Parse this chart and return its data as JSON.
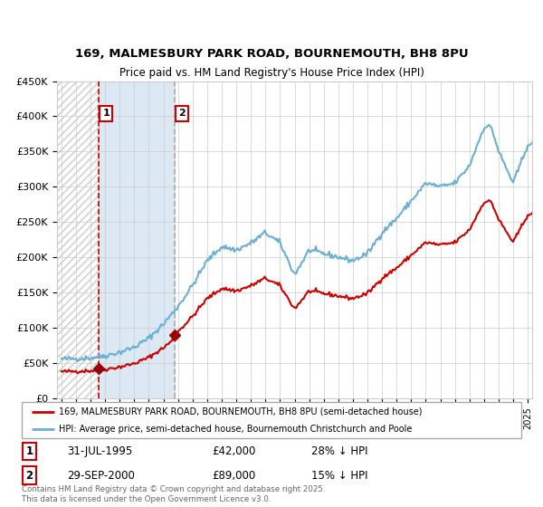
{
  "title1": "169, MALMESBURY PARK ROAD, BOURNEMOUTH, BH8 8PU",
  "title2": "Price paid vs. HM Land Registry's House Price Index (HPI)",
  "legend_line1": "169, MALMESBURY PARK ROAD, BOURNEMOUTH, BH8 8PU (semi-detached house)",
  "legend_line2": "HPI: Average price, semi-detached house, Bournemouth Christchurch and Poole",
  "purchase1_date": "31-JUL-1995",
  "purchase1_price": 42000,
  "purchase1_hpi_pct": "28% ↓ HPI",
  "purchase2_date": "29-SEP-2000",
  "purchase2_price": 89000,
  "purchase2_hpi_pct": "15% ↓ HPI",
  "footnote": "Contains HM Land Registry data © Crown copyright and database right 2025.\nThis data is licensed under the Open Government Licence v3.0.",
  "hpi_color": "#6baed6",
  "price_color": "#cc0000",
  "purchase_marker_color": "#990000",
  "bg_shaded_color": "#dce9f5",
  "vline1_color": "#cc0000",
  "vline2_color": "#aaaaaa",
  "ylim": [
    0,
    450000
  ],
  "yticks": [
    0,
    50000,
    100000,
    150000,
    200000,
    250000,
    300000,
    350000,
    400000,
    450000
  ],
  "x_start_year": 1993,
  "x_end_year": 2025,
  "purchase1_year": 1995.58,
  "purchase2_year": 2000.75,
  "hpi_key_years": [
    1993,
    1994,
    1995,
    1996,
    1997,
    1998,
    1999,
    2000,
    2001,
    2002,
    2003,
    2004,
    2005,
    2006,
    2007,
    2008,
    2009,
    2010,
    2011,
    2012,
    2013,
    2014,
    2015,
    2016,
    2017,
    2018,
    2019,
    2020,
    2021,
    2022,
    2022.5,
    2023,
    2024,
    2025
  ],
  "hpi_key_vals": [
    55000,
    56000,
    57000,
    60000,
    65000,
    72000,
    85000,
    105000,
    130000,
    160000,
    195000,
    215000,
    210000,
    220000,
    235000,
    220000,
    175000,
    210000,
    205000,
    200000,
    195000,
    205000,
    235000,
    255000,
    280000,
    305000,
    300000,
    305000,
    330000,
    385000,
    385000,
    350000,
    305000,
    360000
  ]
}
